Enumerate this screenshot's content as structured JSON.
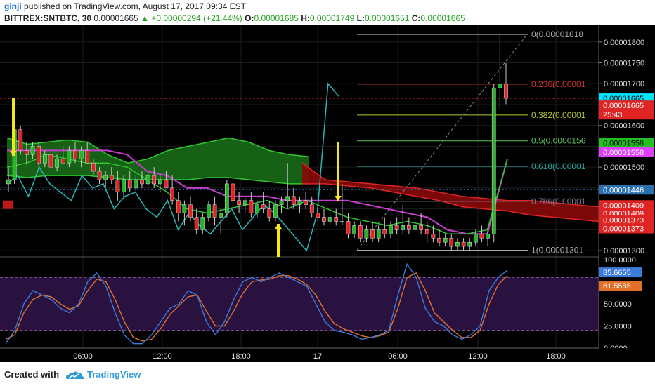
{
  "header": {
    "author": "ginji",
    "published": "published on TradingView.com, August 17, 2017 09:34 EST",
    "symbol": "BITTREX:SNTBTC, 30",
    "last": "0.00001665",
    "change_arrow": "▲",
    "change": "+0.00000294 (+21.44%)",
    "o_key": "O:",
    "o": "0.00001685",
    "h_key": "H:",
    "h": "0.00001749",
    "l_key": "L:",
    "l": "0.00001651",
    "c_key": "C:",
    "c": "0.00001665"
  },
  "footer": {
    "created": "Created with",
    "brand": "TradingView",
    "logo_icon": "tradingview-cloud-icon"
  },
  "colors": {
    "bg": "#000000",
    "up": "#22b822",
    "down": "#e02424",
    "cloud_green": "#1a6b1a",
    "cloud_red": "#8a0a0a",
    "cyan": "#2bb5b5",
    "magenta": "#c83ccf",
    "fib_gray": "#aaaaaa",
    "stoch_k": "#3b7bdc",
    "stoch_d": "#e0702a",
    "stoch_band": "#2a1240"
  },
  "chart_data": {
    "type": "candlestick",
    "title": "",
    "x_ticks": [
      "06:00",
      "12:00",
      "18:00",
      "17",
      "06:00",
      "12:00",
      "18:00"
    ],
    "y_ticks": [
      "0.00001800",
      "0.00001750",
      "0.00001700",
      "0.00001650",
      "0.00001600",
      "0.00001550",
      "0.00001500",
      "0.00001450",
      "0.00001400",
      "0.00001350",
      "0.00001300"
    ],
    "ylim": [
      1.285e-05,
      1.84e-05
    ],
    "price_tags": [
      {
        "label": "0.00001665",
        "value": 1.665e-05,
        "color": "#00e5ff",
        "text": "#000000"
      },
      {
        "label": "0.00001665",
        "value": 1.648e-05,
        "color": "#e02424",
        "text": "#ffffff"
      },
      {
        "label": "25:43",
        "value": 1.626e-05,
        "color": "#e02424",
        "text": "#ffffff"
      },
      {
        "label": "0.00001558",
        "value": 1.558e-05,
        "color": "#22c022",
        "text": "#000000"
      },
      {
        "label": "0.00001558",
        "value": 1.536e-05,
        "color": "#e040fb",
        "text": "#ffffff"
      },
      {
        "label": "0.00001446",
        "value": 1.446e-05,
        "color": "#2a6fb0",
        "text": "#ffffff"
      },
      {
        "label": "0.00001409",
        "value": 1.409e-05,
        "color": "#e02424",
        "text": "#ffffff"
      },
      {
        "label": "0.00001409",
        "value": 1.389e-05,
        "color": "#e02424",
        "text": "#ffffff"
      },
      {
        "label": "0.00001373",
        "value": 1.373e-05,
        "color": "#e02424",
        "text": "#ffffff"
      },
      {
        "label": "0.00001373",
        "value": 1.353e-05,
        "color": "#e02424",
        "text": "#ffffff"
      }
    ],
    "fib_levels": [
      {
        "ratio": "0",
        "label": "0(0.00001818",
        "value": 1.818e-05,
        "color": "#aaaaaa"
      },
      {
        "ratio": "0.236",
        "label": "0.236(0.00001",
        "value": 1.699e-05,
        "color": "#d03030"
      },
      {
        "ratio": "0.382",
        "label": "0.382(0.00001",
        "value": 1.625e-05,
        "color": "#b8c830"
      },
      {
        "ratio": "0.5",
        "label": "0.5(0.0000156",
        "value": 1.563e-05,
        "color": "#5ac05a"
      },
      {
        "ratio": "0.618",
        "label": "0.618(0.00001",
        "value": 1.502e-05,
        "color": "#28a8a0"
      },
      {
        "ratio": "0.786",
        "label": "0.786(0.00001",
        "value": 1.418e-05,
        "color": "#7a7a9a"
      },
      {
        "ratio": "1",
        "label": "1(0.00001301",
        "value": 1.301e-05,
        "color": "#aaaaaa"
      }
    ],
    "candles": [
      [
        1.46e-05,
        1.5e-05,
        1.44e-05,
        1.47e-05
      ],
      [
        1.47e-05,
        1.6e-05,
        1.46e-05,
        1.59e-05
      ],
      [
        1.59e-05,
        1.6e-05,
        1.53e-05,
        1.54e-05
      ],
      [
        1.54e-05,
        1.56e-05,
        1.51e-05,
        1.53e-05
      ],
      [
        1.53e-05,
        1.56e-05,
        1.52e-05,
        1.55e-05
      ],
      [
        1.55e-05,
        1.56e-05,
        1.5e-05,
        1.51e-05
      ],
      [
        1.51e-05,
        1.54e-05,
        1.5e-05,
        1.53e-05
      ],
      [
        1.53e-05,
        1.54e-05,
        1.49e-05,
        1.5e-05
      ],
      [
        1.5e-05,
        1.53e-05,
        1.49e-05,
        1.52e-05
      ],
      [
        1.52e-05,
        1.55e-05,
        1.51e-05,
        1.51e-05
      ],
      [
        1.51e-05,
        1.55e-05,
        1.5e-05,
        1.54e-05
      ],
      [
        1.54e-05,
        1.56e-05,
        1.51e-05,
        1.52e-05
      ],
      [
        1.52e-05,
        1.55e-05,
        1.5e-05,
        1.54e-05
      ],
      [
        1.54e-05,
        1.56e-05,
        1.51e-05,
        1.51e-05
      ],
      [
        1.51e-05,
        1.52e-05,
        1.48e-05,
        1.49e-05
      ],
      [
        1.49e-05,
        1.5e-05,
        1.46e-05,
        1.47e-05
      ],
      [
        1.47e-05,
        1.49e-05,
        1.45e-05,
        1.48e-05
      ],
      [
        1.48e-05,
        1.5e-05,
        1.46e-05,
        1.47e-05
      ],
      [
        1.47e-05,
        1.49e-05,
        1.42e-05,
        1.44e-05
      ],
      [
        1.44e-05,
        1.48e-05,
        1.43e-05,
        1.47e-05
      ],
      [
        1.47e-05,
        1.49e-05,
        1.44e-05,
        1.45e-05
      ],
      [
        1.45e-05,
        1.48e-05,
        1.44e-05,
        1.47e-05
      ],
      [
        1.47e-05,
        1.49e-05,
        1.45e-05,
        1.46e-05
      ],
      [
        1.46e-05,
        1.49e-05,
        1.45e-05,
        1.48e-05
      ],
      [
        1.48e-05,
        1.5e-05,
        1.45e-05,
        1.46e-05
      ],
      [
        1.46e-05,
        1.48e-05,
        1.44e-05,
        1.47e-05
      ],
      [
        1.47e-05,
        1.49e-05,
        1.45e-05,
        1.45e-05
      ],
      [
        1.45e-05,
        1.48e-05,
        1.41e-05,
        1.42e-05
      ],
      [
        1.42e-05,
        1.44e-05,
        1.37e-05,
        1.39e-05
      ],
      [
        1.39e-05,
        1.42e-05,
        1.36e-05,
        1.41e-05
      ],
      [
        1.41e-05,
        1.43e-05,
        1.37e-05,
        1.38e-05
      ],
      [
        1.38e-05,
        1.4e-05,
        1.34e-05,
        1.35e-05
      ],
      [
        1.35e-05,
        1.39e-05,
        1.34e-05,
        1.38e-05
      ],
      [
        1.38e-05,
        1.42e-05,
        1.37e-05,
        1.41e-05
      ],
      [
        1.41e-05,
        1.43e-05,
        1.36e-05,
        1.38e-05
      ],
      [
        1.38e-05,
        1.4e-05,
        1.34e-05,
        1.39e-05
      ],
      [
        1.39e-05,
        1.47e-05,
        1.38e-05,
        1.46e-05
      ],
      [
        1.46e-05,
        1.47e-05,
        1.4e-05,
        1.42e-05
      ],
      [
        1.42e-05,
        1.44e-05,
        1.39e-05,
        1.41e-05
      ],
      [
        1.41e-05,
        1.43e-05,
        1.39e-05,
        1.42e-05
      ],
      [
        1.42e-05,
        1.44e-05,
        1.38e-05,
        1.39e-05
      ],
      [
        1.39e-05,
        1.42e-05,
        1.38e-05,
        1.41e-05
      ],
      [
        1.41e-05,
        1.44e-05,
        1.39e-05,
        1.4e-05
      ],
      [
        1.4e-05,
        1.42e-05,
        1.37e-05,
        1.38e-05
      ],
      [
        1.38e-05,
        1.42e-05,
        1.37e-05,
        1.41e-05
      ],
      [
        1.41e-05,
        1.43e-05,
        1.39e-05,
        1.42e-05
      ],
      [
        1.42e-05,
        1.51e-05,
        1.4e-05,
        1.43e-05
      ],
      [
        1.43e-05,
        1.45e-05,
        1.4e-05,
        1.41e-05
      ],
      [
        1.41e-05,
        1.43e-05,
        1.39e-05,
        1.42e-05
      ],
      [
        1.42e-05,
        1.44e-05,
        1.4e-05,
        1.41e-05
      ],
      [
        1.41e-05,
        1.43e-05,
        1.38e-05,
        1.39e-05
      ],
      [
        1.39e-05,
        1.41e-05,
        1.37e-05,
        1.38e-05
      ],
      [
        1.38e-05,
        1.4e-05,
        1.36e-05,
        1.37e-05
      ],
      [
        1.37e-05,
        1.39e-05,
        1.36e-05,
        1.38e-05
      ],
      [
        1.38e-05,
        1.4e-05,
        1.36e-05,
        1.37e-05
      ],
      [
        1.37e-05,
        1.46e-05,
        1.36e-05,
        1.37e-05
      ],
      [
        1.37e-05,
        1.39e-05,
        1.33e-05,
        1.34e-05
      ],
      [
        1.34e-05,
        1.37e-05,
        1.33e-05,
        1.36e-05
      ],
      [
        1.36e-05,
        1.37e-05,
        1.32e-05,
        1.33e-05
      ],
      [
        1.33e-05,
        1.36e-05,
        1.32e-05,
        1.35e-05
      ],
      [
        1.35e-05,
        1.37e-05,
        1.32e-05,
        1.33e-05
      ],
      [
        1.33e-05,
        1.36e-05,
        1.32e-05,
        1.35e-05
      ],
      [
        1.35e-05,
        1.38e-05,
        1.33e-05,
        1.34e-05
      ],
      [
        1.34e-05,
        1.37e-05,
        1.33e-05,
        1.36e-05
      ],
      [
        1.36e-05,
        1.38e-05,
        1.34e-05,
        1.35e-05
      ],
      [
        1.35e-05,
        1.41e-05,
        1.34e-05,
        1.36e-05
      ],
      [
        1.36e-05,
        1.38e-05,
        1.34e-05,
        1.35e-05
      ],
      [
        1.35e-05,
        1.37e-05,
        1.33e-05,
        1.36e-05
      ],
      [
        1.36e-05,
        1.39e-05,
        1.34e-05,
        1.35e-05
      ],
      [
        1.35e-05,
        1.37e-05,
        1.32e-05,
        1.34e-05
      ],
      [
        1.34e-05,
        1.36e-05,
        1.32e-05,
        1.33e-05
      ],
      [
        1.33e-05,
        1.35e-05,
        1.31e-05,
        1.32e-05
      ],
      [
        1.32e-05,
        1.34e-05,
        1.31e-05,
        1.33e-05
      ],
      [
        1.33e-05,
        1.34e-05,
        1.3e-05,
        1.31e-05
      ],
      [
        1.31e-05,
        1.33e-05,
        1.3e-05,
        1.32e-05
      ],
      [
        1.32e-05,
        1.33e-05,
        1.3e-05,
        1.31e-05
      ],
      [
        1.31e-05,
        1.33e-05,
        1.3e-05,
        1.32e-05
      ],
      [
        1.32e-05,
        1.35e-05,
        1.31e-05,
        1.34e-05
      ],
      [
        1.34e-05,
        1.36e-05,
        1.32e-05,
        1.33e-05
      ],
      [
        1.33e-05,
        1.35e-05,
        1.31e-05,
        1.34e-05
      ],
      [
        1.34e-05,
        1.7e-05,
        1.32e-05,
        1.69e-05
      ],
      [
        1.69e-05,
        1.82e-05,
        1.64e-05,
        1.7e-05
      ],
      [
        1.7e-05,
        1.749e-05,
        1.651e-05,
        1.665e-05
      ]
    ],
    "overlays": {
      "cloud_green_top": [
        1.57e-05,
        1.555e-05,
        1.56e-05,
        1.565e-05,
        1.56e-05,
        1.53e-05,
        1.51e-05,
        1.52e-05,
        1.54e-05,
        1.55e-05,
        1.56e-05,
        1.57e-05,
        1.56e-05,
        1.54e-05,
        1.53e-05,
        1.525e-05
      ],
      "cloud_green_bot": [
        1.48e-05,
        1.475e-05,
        1.48e-05,
        1.48e-05,
        1.48e-05,
        1.475e-05,
        1.47e-05,
        1.47e-05,
        1.47e-05,
        1.47e-05,
        1.475e-05,
        1.475e-05,
        1.47e-05,
        1.465e-05,
        1.46e-05,
        1.46e-05
      ],
      "cloud_red_top": [
        1.51e-05,
        1.47e-05,
        1.465e-05,
        1.46e-05,
        1.455e-05,
        1.45e-05,
        1.44e-05,
        1.43e-05,
        1.425e-05,
        1.42e-05,
        1.42e-05,
        1.415e-05,
        1.41e-05,
        1.405e-05
      ],
      "cloud_red_bot": [
        1.46e-05,
        1.46e-05,
        1.455e-05,
        1.45e-05,
        1.44e-05,
        1.43e-05,
        1.42e-05,
        1.405e-05,
        1.4e-05,
        1.395e-05,
        1.385e-05,
        1.38e-05,
        1.375e-05,
        1.37e-05
      ],
      "magenta_kijun": [
        1.54e-05,
        1.54e-05,
        1.54e-05,
        1.54e-05,
        1.54e-05,
        1.54e-05,
        1.53e-05,
        1.49e-05,
        1.48e-05,
        1.45e-05,
        1.45e-05,
        1.43e-05,
        1.43e-05,
        1.43e-05,
        1.42e-05,
        1.42e-05,
        1.42e-05,
        1.42e-05,
        1.41e-05,
        1.4e-05,
        1.39e-05,
        1.38e-05,
        1.35e-05,
        1.34e-05,
        1.34e-05,
        1.52e-05
      ],
      "green_tenkan": [
        1.5e-05,
        1.51e-05,
        1.53e-05,
        1.52e-05,
        1.51e-05,
        1.51e-05,
        1.5e-05,
        1.47e-05,
        1.44e-05,
        1.4e-05,
        1.39e-05,
        1.4e-05,
        1.41e-05,
        1.42e-05,
        1.4e-05,
        1.42e-05,
        1.4e-05,
        1.38e-05,
        1.37e-05,
        1.36e-05,
        1.37e-05,
        1.36e-05,
        1.34e-05,
        1.34e-05,
        1.35e-05,
        1.52e-05
      ],
      "cyan_chikou": [
        1.46e-05,
        1.48e-05,
        1.43e-05,
        1.5e-05,
        1.46e-05,
        1.44e-05,
        1.42e-05,
        1.48e-05,
        1.45e-05,
        1.46e-05,
        1.4e-05,
        1.43e-05,
        1.44e-05,
        1.4e-05,
        1.38e-05,
        1.42e-05,
        1.35e-05,
        1.39e-05,
        1.36e-05,
        1.34e-05,
        1.37e-05,
        1.4e-05,
        1.35e-05,
        1.38e-05,
        1.41e-05,
        1.39e-05,
        1.36e-05,
        1.33e-05,
        1.3e-05,
        1.39e-05,
        1.7e-05,
        1.67e-05
      ]
    },
    "osc": {
      "y_ticks": [
        "100.0000",
        "50.0000",
        "25.0000",
        "0.0000"
      ],
      "ylim": [
        0,
        100
      ],
      "band": [
        20,
        80
      ],
      "k_tag": "85.6655",
      "d_tag": "81.5585",
      "k": [
        5,
        20,
        50,
        65,
        60,
        55,
        45,
        40,
        50,
        75,
        85,
        70,
        40,
        15,
        5,
        5,
        15,
        30,
        45,
        50,
        65,
        60,
        30,
        15,
        30,
        55,
        75,
        80,
        75,
        80,
        85,
        80,
        75,
        70,
        50,
        30,
        20,
        18,
        15,
        10,
        12,
        15,
        20,
        60,
        95,
        80,
        45,
        30,
        25,
        15,
        10,
        15,
        25,
        65,
        80,
        88
      ],
      "d": [
        10,
        15,
        40,
        55,
        60,
        58,
        50,
        44,
        48,
        65,
        78,
        75,
        55,
        30,
        12,
        8,
        10,
        22,
        38,
        48,
        58,
        60,
        42,
        25,
        25,
        42,
        62,
        75,
        77,
        78,
        82,
        82,
        78,
        72,
        60,
        42,
        28,
        22,
        18,
        14,
        12,
        14,
        18,
        45,
        80,
        85,
        65,
        40,
        30,
        20,
        12,
        12,
        20,
        50,
        72,
        82
      ]
    }
  }
}
